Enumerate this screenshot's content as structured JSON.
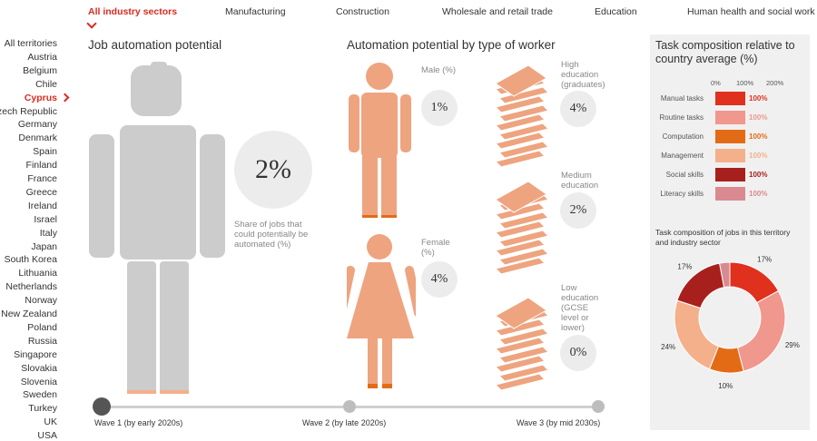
{
  "nav": {
    "items": [
      {
        "label": "All industry sectors",
        "active": true
      },
      {
        "label": "Manufacturing"
      },
      {
        "label": "Construction"
      },
      {
        "label": "Wholesale and retail trade"
      },
      {
        "label": "Education"
      },
      {
        "label": "Human health and social work"
      }
    ]
  },
  "sidebar": {
    "territories": [
      "All territories",
      "Austria",
      "Belgium",
      "Chile",
      "Cyprus",
      "Czech Republic",
      "Germany",
      "Denmark",
      "Spain",
      "Finland",
      "France",
      "Greece",
      "Ireland",
      "Israel",
      "Italy",
      "Japan",
      "South Korea",
      "Lithuania",
      "Netherlands",
      "Norway",
      "New Zealand",
      "Poland",
      "Russia",
      "Singapore",
      "Slovakia",
      "Slovenia",
      "Sweden",
      "Turkey",
      "UK",
      "USA"
    ],
    "selected": "Cyprus"
  },
  "job_automation": {
    "title": "Job automation potential",
    "value": "2%",
    "caption": "Share of jobs that could potentially be automated (%)"
  },
  "worker_types": {
    "title": "Automation potential by type of worker",
    "male": {
      "label": "Male (%)",
      "value": "1%"
    },
    "female": {
      "label": "Female (%)",
      "value": "4%"
    },
    "high_edu": {
      "label": "High education (graduates)",
      "value": "4%"
    },
    "medium_edu": {
      "label": "Medium education",
      "value": "2%"
    },
    "low_edu": {
      "label": "Low education (GCSE level or lower)",
      "value": "0%"
    }
  },
  "waves": {
    "items": [
      "Wave 1 (by early 2020s)",
      "Wave 2 (by late 2020s)",
      "Wave 3 (by mid 2030s)"
    ],
    "selected_index": 0
  },
  "task_panel": {
    "title": "Task composition relative to country average (%)",
    "scale": [
      "0%",
      "100%",
      "200%"
    ],
    "tasks": [
      {
        "label": "Manual tasks",
        "value": "100%",
        "color": "#e0301e"
      },
      {
        "label": "Routine tasks",
        "value": "100%",
        "color": "#f0978e"
      },
      {
        "label": "Computation",
        "value": "100%",
        "color": "#e36b16"
      },
      {
        "label": "Management",
        "value": "100%",
        "color": "#f4b08a"
      },
      {
        "label": "Social skills",
        "value": "100%",
        "color": "#a8201d"
      },
      {
        "label": "Literacy skills",
        "value": "100%",
        "color": "#d98a90"
      }
    ]
  },
  "chart_data": {
    "type": "pie",
    "title": "Task composition of jobs in this territory and industry sector",
    "slices": [
      {
        "label": "17%",
        "value": 17,
        "color": "#e0301e"
      },
      {
        "label": "29%",
        "value": 29,
        "color": "#f0978e"
      },
      {
        "label": "10%",
        "value": 10,
        "color": "#e36b16"
      },
      {
        "label": "24%",
        "value": 24,
        "color": "#f4b08a"
      },
      {
        "label": "17%",
        "value": 17,
        "color": "#a8201d"
      },
      {
        "label": "3%",
        "value": 3,
        "color": "#d98a90"
      }
    ]
  }
}
